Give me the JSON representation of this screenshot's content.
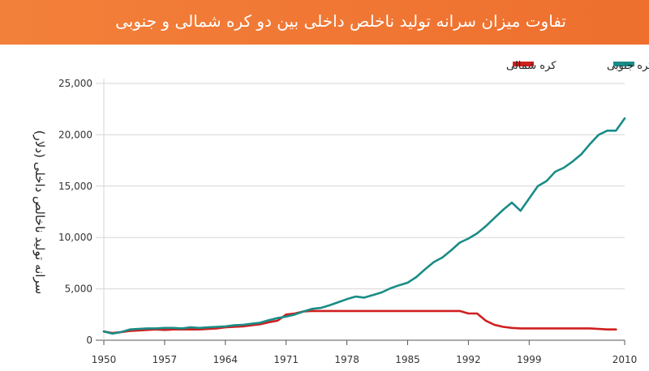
{
  "colors": {
    "banner": "#ef7630",
    "south": "#1a8c86",
    "north": "#d01f1f",
    "grid": "#d6d6d6",
    "axis": "#555555"
  },
  "chart_data": {
    "type": "line",
    "title": "تفاوت میزان سرانه تولید ناخلص داخلی بین دو کره شمالی و جنوبی",
    "xlabel": "",
    "ylabel": "سرانه تولید ناخالص داخلی (دلار)",
    "xlim": [
      1950,
      2010
    ],
    "ylim": [
      0,
      25000
    ],
    "grid": "horizontal",
    "legend_position": "top-right",
    "x_ticks": [
      "1950",
      "1957",
      "1964",
      "1971",
      "1978",
      "1985",
      "1992",
      "1999",
      "2010"
    ],
    "y_ticks": [
      "0",
      "5,000",
      "10,000",
      "15,000",
      "20,000",
      "25,000"
    ],
    "y_tick_values": [
      0,
      5000,
      10000,
      15000,
      20000,
      25000
    ],
    "x_tick_values": [
      1950,
      1957,
      1964,
      1971,
      1978,
      1985,
      1992,
      1999,
      2010
    ],
    "series": [
      {
        "name": "کره جنوبی",
        "color": "#1a8c86",
        "x": [
          1950,
          1951,
          1952,
          1953,
          1954,
          1955,
          1956,
          1957,
          1958,
          1959,
          1960,
          1961,
          1962,
          1963,
          1964,
          1965,
          1966,
          1967,
          1968,
          1969,
          1970,
          1971,
          1972,
          1973,
          1974,
          1975,
          1976,
          1977,
          1978,
          1979,
          1980,
          1981,
          1982,
          1983,
          1984,
          1985,
          1986,
          1987,
          1988,
          1989,
          1990,
          1991,
          1992,
          1993,
          1994,
          1995,
          1996,
          1997,
          1998,
          1999,
          2000,
          2001,
          2002,
          2003,
          2004,
          2005,
          2006,
          2007,
          2008,
          2009,
          2010
        ],
        "values": [
          850,
          650,
          800,
          1050,
          1100,
          1150,
          1150,
          1200,
          1200,
          1150,
          1250,
          1200,
          1250,
          1300,
          1350,
          1450,
          1500,
          1600,
          1700,
          1950,
          2150,
          2300,
          2500,
          2800,
          3050,
          3150,
          3400,
          3700,
          4000,
          4250,
          4150,
          4400,
          4650,
          5050,
          5350,
          5600,
          6150,
          6900,
          7600,
          8050,
          8750,
          9500,
          9900,
          10400,
          11100,
          11900,
          12700,
          13400,
          12600,
          13800,
          15000,
          15500,
          16400,
          16800,
          17400,
          18100,
          19100,
          20000,
          20400,
          20400,
          21600
        ]
      },
      {
        "name": "کره شمالی",
        "color": "#d01f1f",
        "x": [
          1950,
          1951,
          1952,
          1953,
          1954,
          1955,
          1956,
          1957,
          1958,
          1959,
          1960,
          1961,
          1962,
          1963,
          1964,
          1965,
          1966,
          1967,
          1968,
          1969,
          1970,
          1971,
          1972,
          1973,
          1974,
          1975,
          1976,
          1977,
          1978,
          1979,
          1980,
          1981,
          1982,
          1983,
          1984,
          1985,
          1986,
          1987,
          1988,
          1989,
          1990,
          1991,
          1992,
          1993,
          1994,
          1995,
          1996,
          1997,
          1998,
          1999,
          2000,
          2001,
          2002,
          2003,
          2004,
          2005,
          2006,
          2007,
          2008,
          2009
        ],
        "values": [
          850,
          700,
          800,
          900,
          950,
          1000,
          1050,
          1000,
          1050,
          1050,
          1050,
          1050,
          1100,
          1150,
          1250,
          1300,
          1350,
          1450,
          1550,
          1750,
          1900,
          2500,
          2600,
          2800,
          2850,
          2850,
          2850,
          2850,
          2850,
          2850,
          2850,
          2850,
          2850,
          2850,
          2850,
          2850,
          2850,
          2850,
          2850,
          2850,
          2850,
          2850,
          2600,
          2600,
          1900,
          1500,
          1300,
          1200,
          1150,
          1150,
          1150,
          1150,
          1150,
          1150,
          1150,
          1150,
          1150,
          1100,
          1050,
          1050
        ]
      }
    ]
  }
}
